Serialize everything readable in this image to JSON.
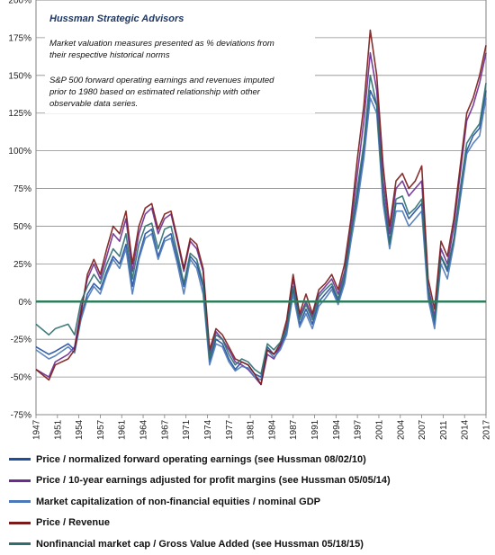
{
  "chart_data": {
    "type": "line",
    "annotations": {
      "title": "Hussman Strategic Advisors",
      "line1": "Market valuation measures presented as % deviations from",
      "line2": "their respective historical norms",
      "line3": "S&P 500 forward operating earnings and revenues imputed",
      "line4": "prior to 1980 based on estimated relationship with other",
      "line5": "observable data series."
    },
    "yticks": [
      "-75%",
      "-50%",
      "-25%",
      "0%",
      "25%",
      "50%",
      "75%",
      "100%",
      "125%",
      "150%",
      "175%",
      "200%"
    ],
    "ytick_values": [
      -75,
      -50,
      -25,
      0,
      25,
      50,
      75,
      100,
      125,
      150,
      175,
      200
    ],
    "xticks": [
      "1947",
      "1951",
      "1954",
      "1957",
      "1961",
      "1964",
      "1967",
      "1971",
      "1974",
      "1977",
      "1981",
      "1984",
      "1987",
      "1991",
      "1994",
      "1997",
      "2001",
      "2004",
      "2007",
      "2011",
      "2014",
      "2017"
    ],
    "ylim": [
      -75,
      200
    ],
    "xlim": [
      1947,
      2017
    ],
    "grid": true,
    "legend_placement": "bottom",
    "x": [
      1947,
      1949,
      1950,
      1952,
      1953,
      1954,
      1955,
      1956,
      1957,
      1958,
      1959,
      1960,
      1961,
      1962,
      1963,
      1964,
      1965,
      1966,
      1967,
      1968,
      1969,
      1970,
      1971,
      1972,
      1973,
      1974,
      1975,
      1976,
      1977,
      1978,
      1979,
      1980,
      1981,
      1982,
      1983,
      1984,
      1985,
      1986,
      1987,
      1988,
      1989,
      1990,
      1991,
      1992,
      1993,
      1994,
      1995,
      1996,
      1997,
      1998,
      1999,
      2000,
      2001,
      2002,
      2003,
      2004,
      2005,
      2006,
      2007,
      2008,
      2009,
      2010,
      2011,
      2012,
      2013,
      2014,
      2015,
      2016,
      2017
    ],
    "series": [
      {
        "name": "Price / normalized forward operating earnings (see Hussman 08/02/10)",
        "color": "#1f4e9c",
        "values": [
          -30,
          -35,
          -33,
          -28,
          -32,
          -10,
          5,
          12,
          8,
          20,
          30,
          25,
          38,
          10,
          30,
          45,
          48,
          30,
          42,
          45,
          28,
          10,
          30,
          25,
          10,
          -40,
          -25,
          -28,
          -38,
          -45,
          -40,
          -42,
          -48,
          -50,
          -30,
          -35,
          -30,
          -20,
          8,
          -15,
          -5,
          -15,
          0,
          5,
          10,
          0,
          15,
          45,
          70,
          100,
          140,
          130,
          70,
          40,
          65,
          65,
          55,
          60,
          65,
          5,
          -15,
          30,
          20,
          40,
          70,
          100,
          110,
          115,
          140
        ]
      },
      {
        "name": "Price / 10-year earnings adjusted for profit margins (see Hussman 05/05/14)",
        "color": "#6b2c91",
        "values": [
          -45,
          -50,
          -40,
          -35,
          -30,
          -5,
          15,
          25,
          15,
          30,
          45,
          40,
          55,
          20,
          45,
          58,
          62,
          45,
          55,
          58,
          40,
          20,
          40,
          35,
          20,
          -35,
          -20,
          -25,
          -32,
          -40,
          -42,
          -45,
          -50,
          -55,
          -35,
          -38,
          -30,
          -15,
          15,
          -10,
          0,
          -10,
          5,
          10,
          15,
          5,
          20,
          50,
          85,
          120,
          165,
          140,
          80,
          45,
          75,
          80,
          70,
          75,
          80,
          10,
          -10,
          35,
          25,
          50,
          85,
          120,
          130,
          145,
          165
        ]
      },
      {
        "name": "Market capitalization of non-financial equities / nominal GDP",
        "color": "#4a78b8",
        "values": [
          -32,
          -38,
          -36,
          -30,
          -34,
          -12,
          2,
          10,
          5,
          18,
          28,
          22,
          35,
          5,
          28,
          42,
          45,
          28,
          40,
          42,
          25,
          5,
          28,
          22,
          5,
          -42,
          -28,
          -30,
          -40,
          -46,
          -43,
          -44,
          -50,
          -52,
          -32,
          -37,
          -32,
          -22,
          5,
          -17,
          -8,
          -18,
          -3,
          2,
          8,
          -2,
          12,
          40,
          65,
          95,
          135,
          125,
          65,
          35,
          60,
          60,
          50,
          55,
          60,
          2,
          -18,
          25,
          15,
          38,
          68,
          98,
          105,
          110,
          135
        ]
      },
      {
        "name": "Price / Revenue",
        "color": "#7a1a1a",
        "values": [
          -45,
          -52,
          -42,
          -38,
          -32,
          -8,
          18,
          28,
          18,
          35,
          50,
          45,
          60,
          25,
          50,
          62,
          65,
          48,
          58,
          60,
          42,
          22,
          42,
          38,
          22,
          -32,
          -18,
          -22,
          -30,
          -38,
          -40,
          -42,
          -48,
          -55,
          -32,
          -35,
          -28,
          -12,
          18,
          -8,
          5,
          -8,
          8,
          12,
          18,
          8,
          25,
          55,
          95,
          130,
          180,
          150,
          90,
          50,
          80,
          85,
          75,
          80,
          90,
          15,
          -5,
          40,
          30,
          55,
          90,
          125,
          135,
          150,
          170
        ]
      },
      {
        "name": "Nonfinancial market cap / Gross Value Added (see Hussman 05/18/15)",
        "color": "#2e6e6e",
        "values": [
          -15,
          -22,
          -18,
          -15,
          -22,
          0,
          10,
          18,
          12,
          25,
          35,
          30,
          45,
          15,
          38,
          50,
          52,
          35,
          48,
          50,
          32,
          12,
          32,
          28,
          12,
          -38,
          -22,
          -25,
          -35,
          -42,
          -38,
          -40,
          -45,
          -48,
          -28,
          -32,
          -27,
          -18,
          10,
          -12,
          -2,
          -12,
          3,
          8,
          12,
          2,
          18,
          45,
          75,
          105,
          150,
          130,
          72,
          38,
          68,
          70,
          58,
          62,
          68,
          8,
          -12,
          30,
          22,
          42,
          75,
          105,
          112,
          118,
          145
        ]
      }
    ]
  },
  "legend": {
    "item1": "Price / normalized forward operating earnings (see Hussman 08/02/10)",
    "item2": "Price / 10-year earnings adjusted for profit margins (see Hussman 05/05/14)",
    "item3": "Market capitalization of non-financial equities / nominal GDP",
    "item4": "Price / Revenue",
    "item5": "Nonfinancial market cap / Gross Value Added (see Hussman 05/18/15)",
    "colors": [
      "#1f4e9c",
      "#6b2c91",
      "#4a78b8",
      "#7a1a1a",
      "#2e6e6e"
    ],
    "zero_line_color": "#2e7d5b"
  }
}
